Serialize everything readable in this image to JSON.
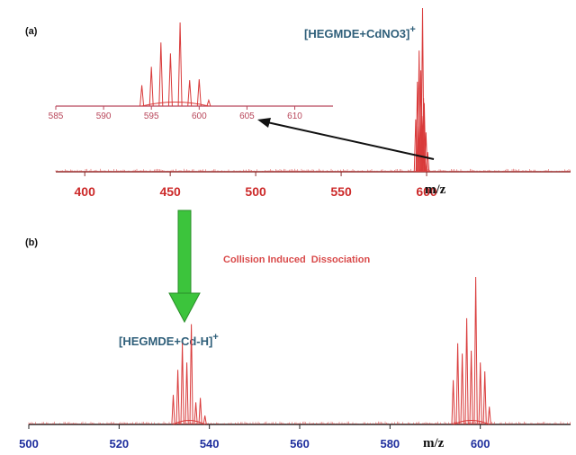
{
  "chart_data": [
    {
      "type": "line",
      "panel": "(a)",
      "annotation": "[HEGMDE+CdNO3]+",
      "xlabel": "m/z",
      "xlim": [
        382,
        640
      ],
      "ticks": [
        400,
        450,
        500,
        550,
        600
      ],
      "tick_labels": [
        "400",
        "450",
        "500",
        "550",
        "600"
      ],
      "peaks": [
        {
          "x": 593.6,
          "y": 0.32
        },
        {
          "x": 594.6,
          "y": 0.55
        },
        {
          "x": 595.0,
          "y": 0.28
        },
        {
          "x": 595.6,
          "y": 0.74
        },
        {
          "x": 596.2,
          "y": 0.4
        },
        {
          "x": 596.6,
          "y": 0.62
        },
        {
          "x": 597.2,
          "y": 0.34
        },
        {
          "x": 597.6,
          "y": 1.0
        },
        {
          "x": 598.2,
          "y": 0.45
        },
        {
          "x": 598.6,
          "y": 0.42
        },
        {
          "x": 599.6,
          "y": 0.24
        },
        {
          "x": 600.6,
          "y": 0.12
        }
      ]
    },
    {
      "type": "line",
      "panel": "inset",
      "xlim": [
        585,
        614
      ],
      "ticks": [
        585,
        590,
        595,
        600,
        605,
        610
      ],
      "tick_labels": [
        "585",
        "590",
        "595",
        "600",
        "605",
        "610"
      ],
      "peaks": [
        {
          "x": 594,
          "y": 0.25
        },
        {
          "x": 595,
          "y": 0.47
        },
        {
          "x": 596,
          "y": 0.76
        },
        {
          "x": 597,
          "y": 0.63
        },
        {
          "x": 598,
          "y": 1.0
        },
        {
          "x": 599,
          "y": 0.31
        },
        {
          "x": 600,
          "y": 0.32
        },
        {
          "x": 601,
          "y": 0.07
        }
      ]
    },
    {
      "type": "line",
      "panel": "(b)",
      "annotation": "[HEGMDE+Cd-H]+",
      "process_label": "Collision Induced  Dissociation",
      "xlabel": "m/z",
      "xlim": [
        500,
        620
      ],
      "ticks": [
        500,
        520,
        540,
        560,
        580,
        600
      ],
      "tick_labels": [
        "500",
        "520",
        "540",
        "560",
        "580",
        "600"
      ],
      "peaks": [
        {
          "x": 532,
          "y": 0.2
        },
        {
          "x": 533,
          "y": 0.37
        },
        {
          "x": 534,
          "y": 0.55
        },
        {
          "x": 535,
          "y": 0.42
        },
        {
          "x": 536,
          "y": 0.68
        },
        {
          "x": 537,
          "y": 0.15
        },
        {
          "x": 538,
          "y": 0.18
        },
        {
          "x": 539,
          "y": 0.06
        },
        {
          "x": 594,
          "y": 0.3
        },
        {
          "x": 595,
          "y": 0.55
        },
        {
          "x": 596,
          "y": 0.48
        },
        {
          "x": 597,
          "y": 0.72
        },
        {
          "x": 598,
          "y": 0.5
        },
        {
          "x": 599,
          "y": 1.0
        },
        {
          "x": 600,
          "y": 0.42
        },
        {
          "x": 601,
          "y": 0.36
        },
        {
          "x": 602,
          "y": 0.12
        }
      ]
    }
  ],
  "colors": {
    "spectrum": "#d93a3a",
    "axis_a": "#8a2a2a",
    "axis_b": "#222222",
    "arrow_green": "#3cc43c",
    "ion_label": "#2f5f7a"
  }
}
